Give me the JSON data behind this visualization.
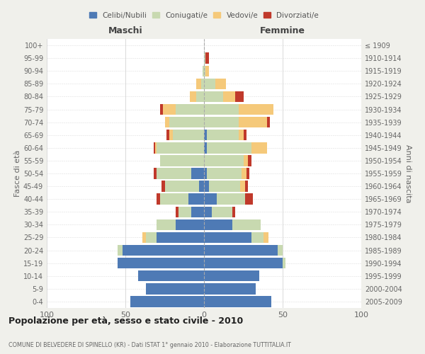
{
  "age_groups": [
    "0-4",
    "5-9",
    "10-14",
    "15-19",
    "20-24",
    "25-29",
    "30-34",
    "35-39",
    "40-44",
    "45-49",
    "50-54",
    "55-59",
    "60-64",
    "65-69",
    "70-74",
    "75-79",
    "80-84",
    "85-89",
    "90-94",
    "95-99",
    "100+"
  ],
  "birth_years": [
    "2005-2009",
    "2000-2004",
    "1995-1999",
    "1990-1994",
    "1985-1989",
    "1980-1984",
    "1975-1979",
    "1970-1974",
    "1965-1969",
    "1960-1964",
    "1955-1959",
    "1950-1954",
    "1945-1949",
    "1940-1944",
    "1935-1939",
    "1930-1934",
    "1925-1929",
    "1920-1924",
    "1915-1919",
    "1910-1914",
    "≤ 1909"
  ],
  "males": {
    "celibe": [
      47,
      37,
      42,
      55,
      52,
      30,
      18,
      8,
      10,
      3,
      8,
      0,
      0,
      0,
      0,
      0,
      0,
      0,
      0,
      0,
      0
    ],
    "coniugato": [
      0,
      0,
      0,
      0,
      3,
      7,
      12,
      8,
      18,
      22,
      22,
      28,
      30,
      20,
      22,
      18,
      5,
      2,
      1,
      0,
      0
    ],
    "vedovo": [
      0,
      0,
      0,
      0,
      0,
      2,
      0,
      0,
      0,
      0,
      0,
      0,
      1,
      2,
      3,
      8,
      4,
      3,
      0,
      0,
      0
    ],
    "divorziato": [
      0,
      0,
      0,
      0,
      0,
      0,
      0,
      2,
      2,
      2,
      2,
      0,
      1,
      2,
      0,
      2,
      0,
      0,
      0,
      0,
      0
    ]
  },
  "females": {
    "nubile": [
      43,
      33,
      35,
      50,
      47,
      30,
      18,
      5,
      8,
      3,
      2,
      0,
      2,
      2,
      0,
      0,
      0,
      0,
      0,
      0,
      0
    ],
    "coniugata": [
      0,
      0,
      0,
      2,
      3,
      8,
      18,
      13,
      18,
      20,
      22,
      25,
      28,
      20,
      22,
      22,
      12,
      7,
      1,
      1,
      0
    ],
    "vedova": [
      0,
      0,
      0,
      0,
      0,
      3,
      0,
      0,
      0,
      3,
      3,
      3,
      10,
      3,
      18,
      22,
      8,
      7,
      2,
      0,
      0
    ],
    "divorziata": [
      0,
      0,
      0,
      0,
      0,
      0,
      0,
      2,
      5,
      2,
      2,
      2,
      0,
      2,
      2,
      0,
      5,
      0,
      0,
      2,
      0
    ]
  },
  "colors": {
    "celibe": "#4e7ab5",
    "coniugato": "#c8d9b0",
    "vedovo": "#f5c97a",
    "divorziato": "#c0392b"
  },
  "xlim": 100,
  "title": "Popolazione per età, sesso e stato civile - 2010",
  "subtitle": "COMUNE DI BELVEDERE DI SPINELLO (KR) - Dati ISTAT 1° gennaio 2010 - Elaborazione TUTTITALIA.IT",
  "ylabel_left": "Fasce di età",
  "ylabel_right": "Anni di nascita",
  "xlabel_left": "Maschi",
  "xlabel_right": "Femmine",
  "bg_color": "#f0f0eb",
  "plot_bg": "#ffffff",
  "legend_labels": [
    "Celibi/Nubili",
    "Coniugati/e",
    "Vedovi/e",
    "Divorziati/e"
  ]
}
